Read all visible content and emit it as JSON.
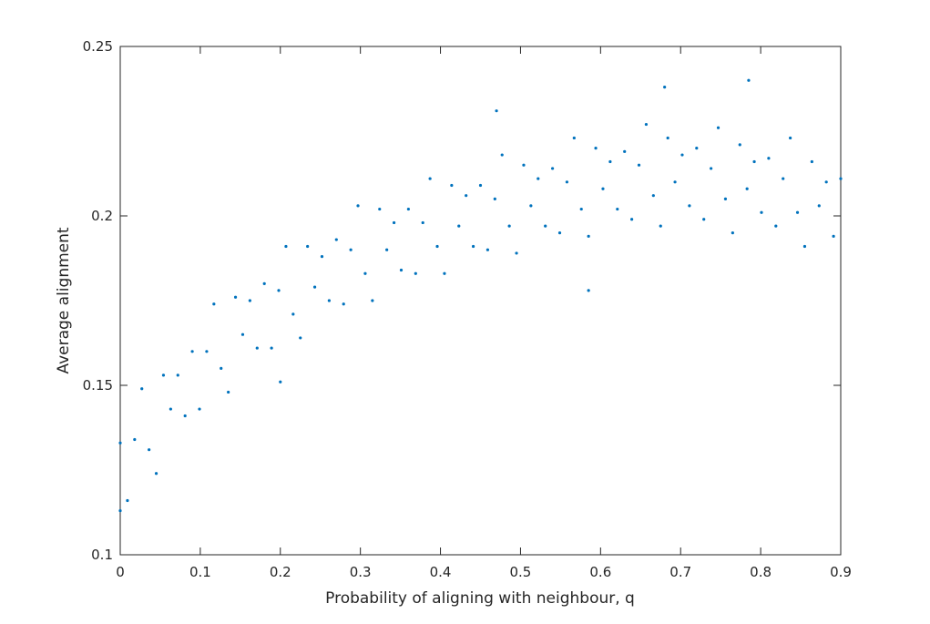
{
  "chart_data": {
    "type": "scatter",
    "xlabel": "Probability of aligning with neighbour, q",
    "ylabel": "Average alignment",
    "color": "#0072bd",
    "xlim": [
      0,
      0.9
    ],
    "ylim": [
      0.1,
      0.25
    ],
    "xticks": [
      0,
      0.1,
      0.2,
      0.3,
      0.4,
      0.5,
      0.6,
      0.7,
      0.8,
      0.9
    ],
    "yticks": [
      0.1,
      0.15,
      0.2,
      0.25
    ],
    "x": [
      0,
      0.009,
      0.018,
      0.027,
      0.036,
      0.045,
      0.054,
      0.063,
      0.072,
      0.081,
      0.09,
      0.099,
      0.108,
      0.117,
      0.126,
      0.135,
      0.144,
      0.153,
      0.162,
      0.171,
      0.18,
      0.189,
      0.198,
      0.207,
      0.216,
      0.225,
      0.234,
      0.243,
      0.252,
      0.261,
      0.27,
      0.279,
      0.288,
      0.297,
      0.306,
      0.315,
      0.324,
      0.333,
      0.342,
      0.351,
      0.36,
      0.369,
      0.378,
      0.387,
      0.396,
      0.405,
      0.414,
      0.423,
      0.432,
      0.441,
      0.45,
      0.459,
      0.468,
      0.477,
      0.486,
      0.495,
      0.504,
      0.513,
      0.522,
      0.531,
      0.54,
      0.549,
      0.558,
      0.567,
      0.576,
      0.585,
      0.594,
      0.603,
      0.612,
      0.621,
      0.63,
      0.639,
      0.648,
      0.657,
      0.666,
      0.675,
      0.684,
      0.693,
      0.702,
      0.711,
      0.72,
      0.729,
      0.738,
      0.747,
      0.756,
      0.765,
      0.774,
      0.783,
      0.792,
      0.801,
      0.81,
      0.819,
      0.828,
      0.837,
      0.846,
      0.855,
      0.864,
      0.873,
      0.882,
      0.891,
      0.9,
      0,
      0.47,
      0.785,
      0.2,
      0.585,
      0.68
    ],
    "y": [
      0.133,
      0.116,
      0.134,
      0.149,
      0.131,
      0.124,
      0.153,
      0.143,
      0.153,
      0.141,
      0.16,
      0.143,
      0.16,
      0.174,
      0.155,
      0.148,
      0.176,
      0.165,
      0.175,
      0.161,
      0.18,
      0.161,
      0.178,
      0.191,
      0.171,
      0.164,
      0.191,
      0.179,
      0.188,
      0.175,
      0.193,
      0.174,
      0.19,
      0.203,
      0.183,
      0.175,
      0.202,
      0.19,
      0.198,
      0.184,
      0.202,
      0.183,
      0.198,
      0.211,
      0.191,
      0.183,
      0.209,
      0.197,
      0.206,
      0.191,
      0.209,
      0.19,
      0.205,
      0.218,
      0.197,
      0.189,
      0.215,
      0.203,
      0.211,
      0.197,
      0.214,
      0.195,
      0.21,
      0.223,
      0.202,
      0.194,
      0.22,
      0.208,
      0.216,
      0.202,
      0.219,
      0.199,
      0.215,
      0.227,
      0.206,
      0.197,
      0.223,
      0.21,
      0.218,
      0.203,
      0.22,
      0.199,
      0.214,
      0.226,
      0.205,
      0.195,
      0.221,
      0.208,
      0.216,
      0.201,
      0.217,
      0.197,
      0.211,
      0.223,
      0.201,
      0.191,
      0.216,
      0.203,
      0.21,
      0.194,
      0.211,
      0.113,
      0.231,
      0.24,
      0.151,
      0.178,
      0.238
    ]
  }
}
